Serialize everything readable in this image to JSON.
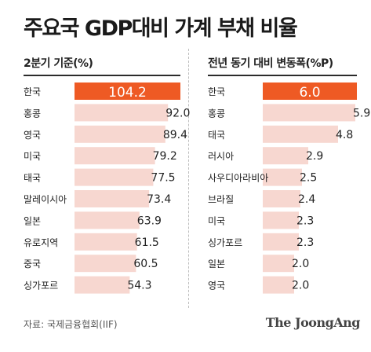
{
  "title": "주요국 GDP대비 가계 부채 비율",
  "colors": {
    "accent": "#ee5a24",
    "bar": "#f7d7d0",
    "rule": "#2b2b2b",
    "label_on_accent": "#ffffff"
  },
  "source": "자료: 국제금융협회(IIF)",
  "brand": "The JoongAng",
  "chart_data": [
    {
      "type": "bar",
      "orientation": "horizontal",
      "subtitle": "2분기 기준(%)",
      "categories": [
        "한국",
        "홍콩",
        "영국",
        "미국",
        "태국",
        "말레이시아",
        "일본",
        "유로지역",
        "중국",
        "싱가포르"
      ],
      "values": [
        104.2,
        92.0,
        89.4,
        79.2,
        77.5,
        73.4,
        63.9,
        61.5,
        60.5,
        54.3
      ],
      "value_labels": [
        "104.2",
        "92.0",
        "89.4",
        "79.2",
        "77.5",
        "73.4",
        "63.9",
        "61.5",
        "60.5",
        "54.3"
      ],
      "highlight_index": 0,
      "xlim": [
        0,
        104.2
      ]
    },
    {
      "type": "bar",
      "orientation": "horizontal",
      "subtitle": "전년 동기 대비 변동폭(%P)",
      "categories": [
        "한국",
        "홍콩",
        "태국",
        "러시아",
        "사우디아라비아",
        "브라질",
        "미국",
        "싱가포르",
        "일본",
        "영국"
      ],
      "values": [
        6.0,
        5.9,
        4.8,
        2.9,
        2.5,
        2.4,
        2.3,
        2.3,
        2.0,
        2.0
      ],
      "value_labels": [
        "6.0",
        "5.9",
        "4.8",
        "2.9",
        "2.5",
        "2.4",
        "2.3",
        "2.3",
        "2.0",
        "2.0"
      ],
      "highlight_index": 0,
      "xlim": [
        0,
        6.0
      ]
    }
  ]
}
